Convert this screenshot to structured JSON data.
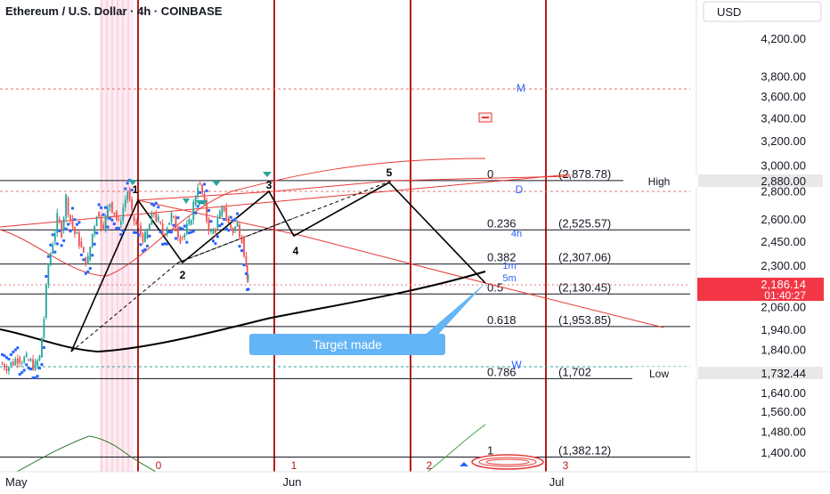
{
  "header": {
    "title": "Ethereum / U.S. Dollar · 4h · COINBASE",
    "currency": "USD"
  },
  "chart_data": {
    "type": "line",
    "title": "Ethereum / U.S. Dollar · 4h · COINBASE",
    "ylabel": "USD",
    "ylim": [
      1380,
      4300
    ],
    "y_scale": "log",
    "x_ticks": [
      "May",
      "Jun",
      "Jul"
    ],
    "y_ticks": [
      4200,
      3800,
      3600,
      3400,
      3200,
      3000,
      2800,
      2600,
      2450,
      2300,
      2060,
      1940,
      1840,
      1640,
      1560,
      1480,
      1400
    ],
    "y_tick_labels": [
      "4,200.00",
      "3,800.00",
      "3,600.00",
      "3,400.00",
      "3,200.00",
      "3,000.00",
      "2,800.00",
      "2,600.00",
      "2,450.00",
      "2,300.00",
      "2,060.00",
      "1,940.00",
      "1,840.00",
      "1,640.00",
      "1,560.00",
      "1,480.00",
      "1,400.00"
    ],
    "price_series": [
      [
        "2024-04-30",
        1770
      ],
      [
        "2024-05-02",
        1760
      ],
      [
        "2024-05-04",
        1800
      ],
      [
        "2024-05-06",
        1790
      ],
      [
        "2024-05-08",
        1760
      ],
      [
        "2024-05-09",
        1800
      ],
      [
        "2024-05-10",
        2000
      ],
      [
        "2024-05-11",
        2300
      ],
      [
        "2024-05-12",
        2450
      ],
      [
        "2024-05-13",
        2600
      ],
      [
        "2024-05-14",
        2520
      ],
      [
        "2024-05-15",
        2750
      ],
      [
        "2024-05-16",
        2600
      ],
      [
        "2024-05-17",
        2500
      ],
      [
        "2024-05-18",
        2450
      ],
      [
        "2024-05-19",
        2350
      ],
      [
        "2024-05-20",
        2330
      ],
      [
        "2024-05-21",
        2500
      ],
      [
        "2024-05-22",
        2650
      ],
      [
        "2024-05-23",
        2560
      ],
      [
        "2024-05-24",
        2600
      ],
      [
        "2024-05-25",
        2720
      ],
      [
        "2024-05-26",
        2650
      ],
      [
        "2024-05-27",
        2560
      ],
      [
        "2024-05-28",
        2680
      ],
      [
        "2024-05-29",
        2800
      ],
      [
        "2024-05-30",
        2620
      ],
      [
        "2024-05-31",
        2560
      ],
      [
        "2024-06-01",
        2500
      ],
      [
        "2024-06-02",
        2470
      ],
      [
        "2024-06-03",
        2560
      ],
      [
        "2024-06-04",
        2640
      ],
      [
        "2024-06-05",
        2580
      ],
      [
        "2024-06-06",
        2500
      ],
      [
        "2024-06-07",
        2560
      ],
      [
        "2024-06-08",
        2620
      ],
      [
        "2024-06-09",
        2540
      ],
      [
        "2024-06-10",
        2480
      ],
      [
        "2024-06-11",
        2500
      ],
      [
        "2024-06-12",
        2560
      ],
      [
        "2024-06-13",
        2700
      ],
      [
        "2024-06-14",
        2860
      ],
      [
        "2024-06-15",
        2780
      ],
      [
        "2024-06-16",
        2600
      ],
      [
        "2024-06-17",
        2500
      ],
      [
        "2024-06-18",
        2540
      ],
      [
        "2024-06-19",
        2620
      ],
      [
        "2024-06-20",
        2680
      ],
      [
        "2024-06-21",
        2560
      ],
      [
        "2024-06-22",
        2520
      ],
      [
        "2024-06-23",
        2560
      ],
      [
        "2024-06-24",
        2480
      ],
      [
        "2024-06-25",
        2300
      ],
      [
        "2024-06-25T12:00",
        2186
      ]
    ],
    "current_price": "2,186.14",
    "countdown": "01:40:27",
    "high_label": "High",
    "high_value": "2,880.00",
    "low_label": "Low",
    "low_value": "1,732.44",
    "fibonacci": [
      {
        "ratio": "0",
        "price": "(2,878.78)",
        "value": 2878.78
      },
      {
        "ratio": "0.236",
        "price": "(2,525.57)",
        "value": 2525.57
      },
      {
        "ratio": "0.382",
        "price": "(2,307.06)",
        "value": 2307.06
      },
      {
        "ratio": "0.5",
        "price": "(2,130.45)",
        "value": 2130.45
      },
      {
        "ratio": "0.618",
        "price": "(1,953.85)",
        "value": 1953.85
      },
      {
        "ratio": "0.786",
        "price": "(1,702",
        "value": 1702
      },
      {
        "ratio": "1",
        "price": "(1,382.12)",
        "value": 1382.12
      }
    ],
    "wave_labels": [
      "1",
      "2",
      "3",
      "4",
      "5"
    ],
    "cycle_labels": [
      "0",
      "1",
      "2",
      "3"
    ],
    "side_letters": [
      "M",
      "D",
      "4h",
      "1m",
      "5m",
      "W"
    ],
    "annotation": "Target made",
    "colors": {
      "price_up": "#26a69a",
      "price_down": "#ef5350",
      "sar": "#2962ff",
      "fib": "#131722",
      "vertical_lines": "#b71c1c",
      "callout": "#64b5f6",
      "price_badge": "#f23645"
    }
  }
}
